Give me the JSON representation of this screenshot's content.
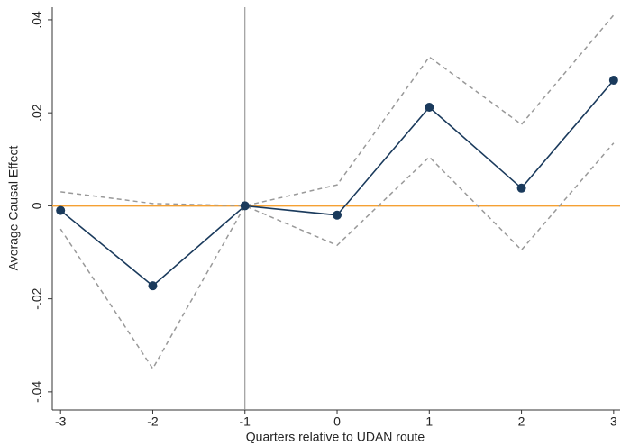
{
  "chart_data": {
    "type": "line",
    "xlabel": "Quarters relative to UDAN route",
    "ylabel": "Average Causal Effect",
    "x": [
      -3,
      -2,
      -1,
      0,
      1,
      2,
      3
    ],
    "series": [
      {
        "color": "#999999",
        "dashed": true,
        "markers": false,
        "values": [
          0.003,
          0.0005,
          0,
          0.0045,
          0.032,
          0.0175,
          0.041
        ]
      },
      {
        "color": "#999999",
        "dashed": true,
        "markers": false,
        "values": [
          -0.005,
          -0.035,
          0,
          -0.0085,
          0.0105,
          -0.0095,
          0.0135
        ]
      },
      {
        "color": "#1a3a5c",
        "dashed": false,
        "markers": true,
        "values": [
          -0.001,
          -0.0172,
          0,
          -0.002,
          0.0212,
          0.0038,
          0.027
        ]
      }
    ],
    "xlim": [
      -3.09,
      3.07
    ],
    "ylim": [
      -0.0439,
      0.0427
    ],
    "xticks": [
      -3,
      -2,
      -1,
      0,
      1,
      2,
      3
    ],
    "yticks": [
      {
        "value": -0.04,
        "label": "-.04"
      },
      {
        "value": -0.02,
        "label": "-.02"
      },
      0,
      {
        "value": 0.02,
        "label": ".02"
      },
      {
        "value": 0.04,
        "label": ".04"
      }
    ],
    "vline": -1,
    "vline_color": "#888888",
    "hline": 0,
    "hline_color": "#f5a033",
    "grid": false
  }
}
